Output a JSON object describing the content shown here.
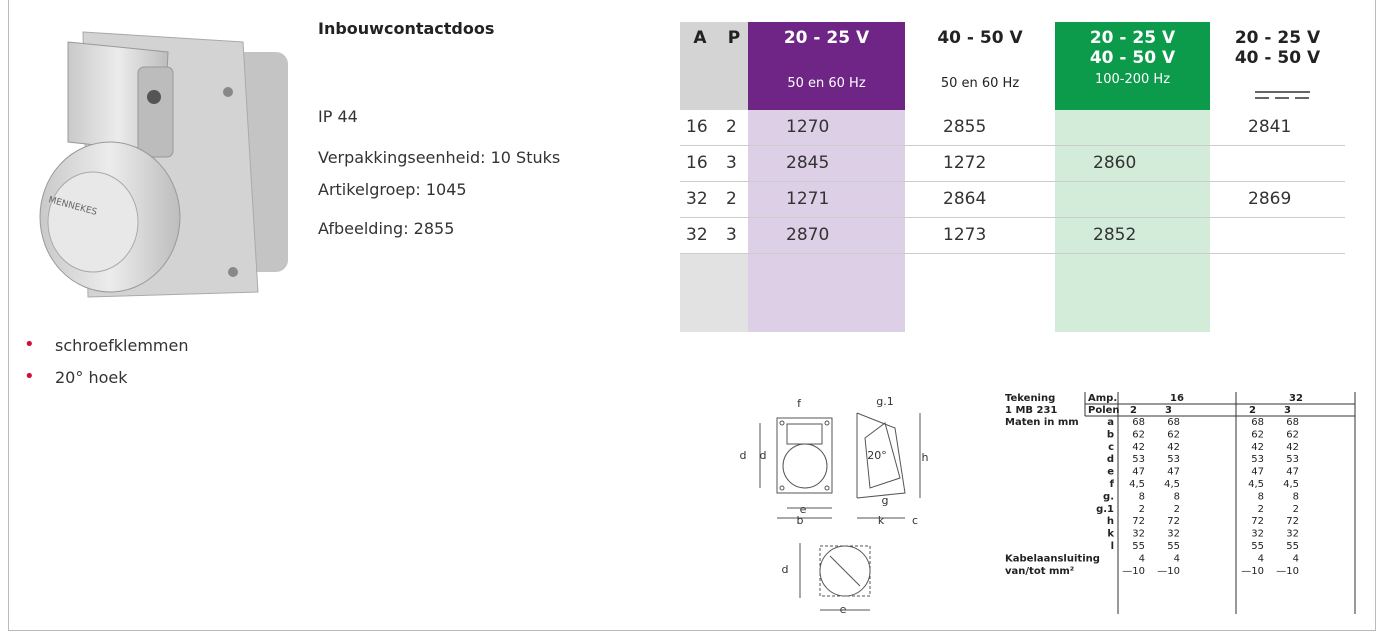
{
  "product": {
    "title": "Inbouwcontactdoos",
    "specs": [
      "IP 44",
      "Verpakkingseenheid: 10 Stuks",
      "Artikelgroep: 1045",
      "Afbeelding: 2855"
    ],
    "features": [
      "schroefklemmen",
      "20° hoek"
    ]
  },
  "table": {
    "headers": [
      {
        "main": [
          "A"
        ]
      },
      {
        "main": [
          "P"
        ]
      },
      {
        "main": [
          "20 - 25 V"
        ],
        "sub": "50 en 60 Hz"
      },
      {
        "main": [
          "40 - 50 V"
        ],
        "sub": "50 en 60 Hz"
      },
      {
        "main": [
          "20 - 25 V",
          "40 - 50 V"
        ],
        "sub": "100-200 Hz"
      },
      {
        "main": [
          "20 - 25 V",
          "40 - 50 V"
        ]
      }
    ],
    "rows": [
      [
        "16",
        "2",
        "1270",
        "2855",
        null,
        "2841"
      ],
      [
        "16",
        "3",
        "2845",
        "1272",
        "2860",
        null
      ],
      [
        "32",
        "2",
        "1271",
        "2864",
        null,
        "2869"
      ],
      [
        "32",
        "3",
        "2870",
        "1273",
        "2852",
        null
      ]
    ]
  },
  "drawing": {
    "labels": [
      "f",
      "g.1",
      "d",
      "d",
      "h",
      "20°",
      "g",
      "e",
      "b",
      "k",
      "c",
      "d",
      "e"
    ]
  },
  "dimensions": {
    "header": {
      "drawing_label": "Tekening",
      "drawing_id": "1 MB 231",
      "amp_label": "Amp.",
      "poles_label": "Polen",
      "amps": [
        "16",
        "32"
      ],
      "poles": [
        "2",
        "3",
        "2",
        "3"
      ]
    },
    "unit_label": "Maten in mm",
    "rows": [
      {
        "key": "a",
        "values": [
          "68",
          "68",
          "68",
          "68"
        ]
      },
      {
        "key": "b",
        "values": [
          "62",
          "62",
          "62",
          "62"
        ]
      },
      {
        "key": "c",
        "values": [
          "42",
          "42",
          "42",
          "42"
        ]
      },
      {
        "key": "d",
        "values": [
          "53",
          "53",
          "53",
          "53"
        ]
      },
      {
        "key": "e",
        "values": [
          "47",
          "47",
          "47",
          "47"
        ]
      },
      {
        "key": "f",
        "values": [
          "4,5",
          "4,5",
          "4,5",
          "4,5"
        ]
      },
      {
        "key": "g.",
        "values": [
          "8",
          "8",
          "8",
          "8"
        ]
      },
      {
        "key": "g.1",
        "values": [
          "2",
          "2",
          "2",
          "2"
        ]
      },
      {
        "key": "h",
        "values": [
          "72",
          "72",
          "72",
          "72"
        ]
      },
      {
        "key": "k",
        "values": [
          "32",
          "32",
          "32",
          "32"
        ]
      },
      {
        "key": "l",
        "values": [
          "55",
          "55",
          "55",
          "55"
        ]
      }
    ],
    "cable": {
      "label": [
        "Kabelaansluiting",
        "van/tot mm²"
      ],
      "values": [
        [
          "4",
          "4",
          "4",
          "4"
        ],
        [
          "—10",
          "—10",
          "—10",
          "—10"
        ]
      ]
    }
  }
}
